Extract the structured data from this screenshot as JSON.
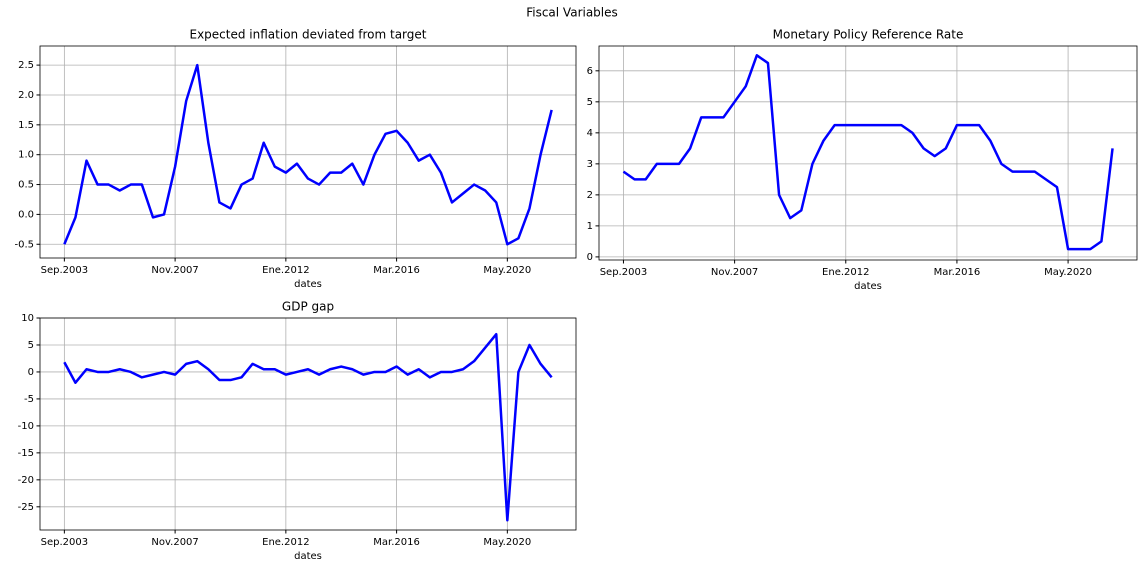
{
  "title": "Fiscal Variables",
  "chart_data": [
    {
      "type": "line",
      "title": "Expected inflation deviated from target",
      "xlabel": "dates",
      "categories": [
        "Sep.2003",
        null,
        null,
        null,
        null,
        null,
        null,
        null,
        null,
        null,
        "Nov.2007",
        null,
        null,
        null,
        null,
        null,
        null,
        null,
        null,
        null,
        "Ene.2012",
        null,
        null,
        null,
        null,
        null,
        null,
        null,
        null,
        null,
        "Mar.2016",
        null,
        null,
        null,
        null,
        null,
        null,
        null,
        null,
        null,
        "May.2020",
        null,
        null,
        null,
        null
      ],
      "values": [
        -0.5,
        -0.05,
        0.9,
        0.5,
        0.5,
        0.4,
        0.5,
        0.5,
        -0.05,
        0.0,
        0.8,
        1.9,
        2.5,
        1.2,
        0.2,
        0.1,
        0.5,
        0.6,
        1.2,
        0.8,
        0.7,
        0.85,
        0.6,
        0.5,
        0.7,
        0.7,
        0.85,
        0.5,
        1.0,
        1.35,
        1.4,
        1.2,
        0.9,
        1.0,
        0.7,
        0.2,
        0.35,
        0.5,
        0.4,
        0.2,
        -0.5,
        -0.4,
        0.1,
        1.0,
        1.75
      ],
      "color": "#0000ff",
      "ylim": [
        -0.73,
        2.82
      ],
      "yticks": [
        -0.5,
        {
          "value": 0,
          "label": "0.0"
        },
        0.5,
        {
          "value": 1,
          "label": "1.0"
        },
        1.5,
        {
          "value": 2,
          "label": "2.0"
        },
        2.5
      ],
      "grid": true
    },
    {
      "type": "line",
      "title": "Monetary Policy Reference Rate",
      "xlabel": "dates",
      "categories": [
        "Sep.2003",
        null,
        null,
        null,
        null,
        null,
        null,
        null,
        null,
        null,
        "Nov.2007",
        null,
        null,
        null,
        null,
        null,
        null,
        null,
        null,
        null,
        "Ene.2012",
        null,
        null,
        null,
        null,
        null,
        null,
        null,
        null,
        null,
        "Mar.2016",
        null,
        null,
        null,
        null,
        null,
        null,
        null,
        null,
        null,
        "May.2020",
        null,
        null,
        null,
        null
      ],
      "values": [
        2.75,
        2.5,
        2.5,
        3.0,
        3.0,
        3.0,
        3.5,
        4.5,
        4.5,
        4.5,
        5.0,
        5.5,
        6.5,
        6.25,
        2.0,
        1.25,
        1.5,
        3.0,
        3.75,
        4.25,
        4.25,
        4.25,
        4.25,
        4.25,
        4.25,
        4.25,
        4.0,
        3.5,
        3.25,
        3.5,
        4.25,
        4.25,
        4.25,
        3.75,
        3.0,
        2.75,
        2.75,
        2.75,
        2.5,
        2.25,
        0.25,
        0.25,
        0.25,
        0.5,
        3.5
      ],
      "color": "#0000ff",
      "ylim": [
        -0.1,
        6.8
      ],
      "yticks": [
        0,
        1,
        2,
        3,
        4,
        5,
        6
      ],
      "grid": true
    },
    {
      "type": "line",
      "title": "GDP gap",
      "xlabel": "dates",
      "categories": [
        "Sep.2003",
        null,
        null,
        null,
        null,
        null,
        null,
        null,
        null,
        null,
        "Nov.2007",
        null,
        null,
        null,
        null,
        null,
        null,
        null,
        null,
        null,
        "Ene.2012",
        null,
        null,
        null,
        null,
        null,
        null,
        null,
        null,
        null,
        "Mar.2016",
        null,
        null,
        null,
        null,
        null,
        null,
        null,
        null,
        null,
        "May.2020",
        null,
        null,
        null,
        null
      ],
      "values": [
        1.8,
        -2,
        0.5,
        0,
        0,
        0.5,
        0,
        -1,
        -0.5,
        0,
        -0.5,
        1.5,
        2,
        0.5,
        -1.5,
        -1.5,
        -1,
        1.5,
        0.5,
        0.5,
        -0.5,
        0,
        0.5,
        -0.5,
        0.5,
        1,
        0.5,
        -0.5,
        0,
        0,
        1,
        -0.5,
        0.5,
        -1,
        0,
        0,
        0.5,
        2,
        4.5,
        7,
        -27.5,
        0,
        5,
        1.5,
        -1
      ],
      "color": "#0000ff",
      "ylim": [
        -29.3,
        10
      ],
      "yticks": [
        -25,
        -20,
        -15,
        -10,
        -5,
        0,
        5,
        10
      ],
      "grid": true
    }
  ]
}
